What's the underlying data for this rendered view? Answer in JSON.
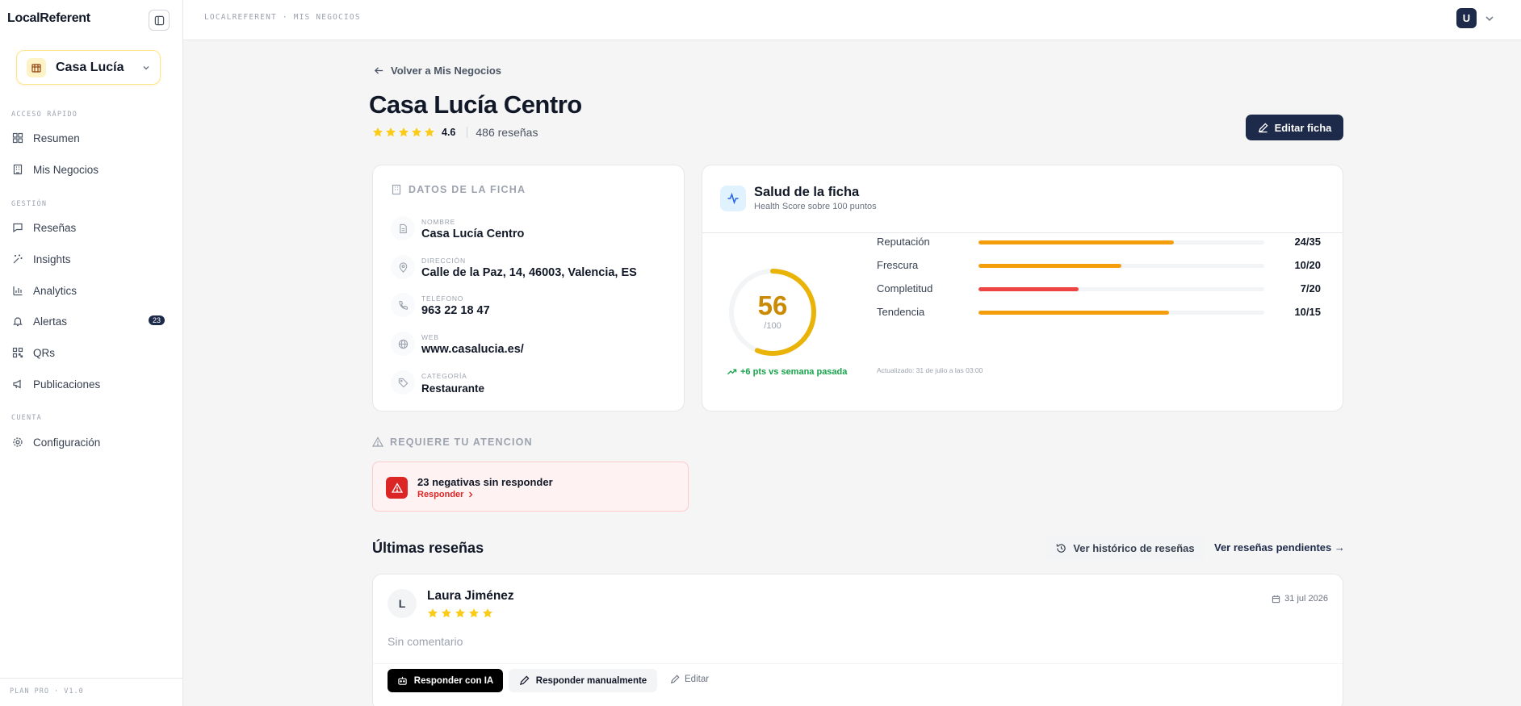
{
  "app": {
    "name": "LocalReferent",
    "plan": "PLAN PRO · V1.0"
  },
  "business_selector": {
    "value": "Casa Lucía"
  },
  "sidebar": {
    "sections": [
      {
        "label": "ACCESO RÁPIDO"
      },
      {
        "label": "GESTIÓN"
      },
      {
        "label": "CUENTA"
      }
    ],
    "items": [
      {
        "label": "Resumen",
        "icon": "grid-icon"
      },
      {
        "label": "Mis Negocios",
        "icon": "building-icon"
      },
      {
        "label": "Reseñas",
        "icon": "message-icon"
      },
      {
        "label": "Insights",
        "icon": "sparkles-icon"
      },
      {
        "label": "Analytics",
        "icon": "bar-chart-icon"
      },
      {
        "label": "Alertas",
        "icon": "bell-icon",
        "badge": "23"
      },
      {
        "label": "QRs",
        "icon": "qr-icon"
      },
      {
        "label": "Publicaciones",
        "icon": "megaphone-icon"
      },
      {
        "label": "Configuración",
        "icon": "gear-icon"
      }
    ]
  },
  "topbar": {
    "breadcrumb": "LOCALREFERENT · MIS NEGOCIOS",
    "user_initial": "U"
  },
  "header": {
    "back_label": "Volver a Mis Negocios",
    "title": "Casa Lucía Centro",
    "rating": "4.6",
    "reviews": "486 reseñas",
    "edit_label": "Editar ficha"
  },
  "ficha": {
    "heading": "DATOS DE LA FICHA",
    "fields": [
      {
        "label": "NOMBRE",
        "value": "Casa Lucía Centro",
        "icon": "document-icon"
      },
      {
        "label": "DIRECCIÓN",
        "value": "Calle de la Paz, 14, 46003, Valencia, ES",
        "icon": "map-pin-icon"
      },
      {
        "label": "TELÉFONO",
        "value": "963 22 18 47",
        "icon": "phone-icon"
      },
      {
        "label": "WEB",
        "value": "www.casalucia.es/",
        "icon": "globe-icon"
      },
      {
        "label": "CATEGORÍA",
        "value": "Restaurante",
        "icon": "tag-icon"
      }
    ]
  },
  "health": {
    "title": "Salud de la ficha",
    "subtitle": "Health Score sobre 100 puntos",
    "score": "56",
    "score_max": "/100",
    "score_fraction": 0.56,
    "trend": "+6 pts vs semana pasada",
    "updated": "Actualizado: 31 de julio a las 03:00",
    "metrics": [
      {
        "label": "Reputación",
        "value": "24/35",
        "fraction": 0.685,
        "color": "#f59e0b"
      },
      {
        "label": "Frescura",
        "value": "10/20",
        "fraction": 0.5,
        "color": "#f59e0b"
      },
      {
        "label": "Completitud",
        "value": "7/20",
        "fraction": 0.35,
        "color": "#ef4444"
      },
      {
        "label": "Tendencia",
        "value": "10/15",
        "fraction": 0.667,
        "color": "#f59e0b"
      }
    ]
  },
  "attention": {
    "heading": "REQUIERE TU ATENCION",
    "alert_title": "23 negativas sin responder",
    "alert_action": "Responder"
  },
  "reviews_section": {
    "title": "Últimas reseñas",
    "history_label": "Ver histórico de reseñas",
    "pending_label": "Ver reseñas pendientes →",
    "items": [
      {
        "initial": "L",
        "author": "Laura Jiménez",
        "stars": 5,
        "date": "31 jul 2026",
        "comment": "Sin comentario",
        "ai_label": "Responder con IA",
        "manual_label": "Responder manualmente",
        "edit_label": "Editar"
      }
    ]
  },
  "colors": {
    "brand": "#1e2a4a",
    "star": "#facc15",
    "gauge": "#eab308",
    "danger": "#dc2626",
    "success": "#16a34a"
  }
}
